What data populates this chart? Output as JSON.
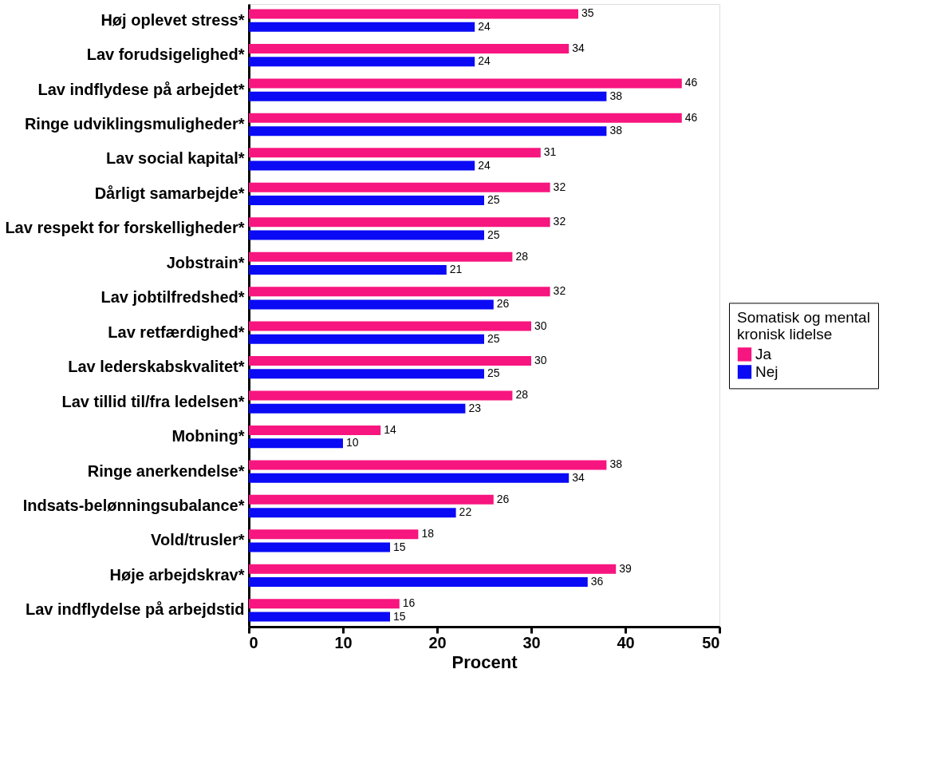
{
  "chart_data": {
    "type": "bar",
    "orientation": "horizontal",
    "xlabel": "Procent",
    "legend_title": "Somatisk og mental kronisk lidelse",
    "legend": "right",
    "data_labels": true,
    "grid": false,
    "categories": [
      "Høj oplevet stress*",
      "Lav forudsigelighed*",
      "Lav indflydese på arbejdet*",
      "Ringe udviklingsmuligheder*",
      "Lav social kapital*",
      "Dårligt samarbejde*",
      "Lav respekt for forskelligheder*",
      "Jobstrain*",
      "Lav jobtilfredshed*",
      "Lav retfærdighed*",
      "Lav lederskabskvalitet*",
      "Lav tillid til/fra ledelsen*",
      "Mobning*",
      "Ringe anerkendelse*",
      "Indsats-belønningsubalance*",
      "Vold/trusler*",
      "Høje arbejdskrav*",
      "Lav indflydelse på arbejdstid"
    ],
    "series": [
      {
        "name": "Ja",
        "color": "#f7157f",
        "values": [
          35,
          34,
          46,
          46,
          31,
          32,
          32,
          28,
          32,
          30,
          30,
          28,
          14,
          38,
          26,
          18,
          39,
          16
        ]
      },
      {
        "name": "Nej",
        "color": "#0a0af5",
        "values": [
          24,
          24,
          38,
          38,
          24,
          25,
          25,
          21,
          26,
          25,
          25,
          23,
          10,
          34,
          22,
          15,
          36,
          15
        ]
      }
    ],
    "xlim": [
      0,
      50
    ],
    "xticks": [
      0,
      10,
      20,
      30,
      40,
      50
    ]
  }
}
